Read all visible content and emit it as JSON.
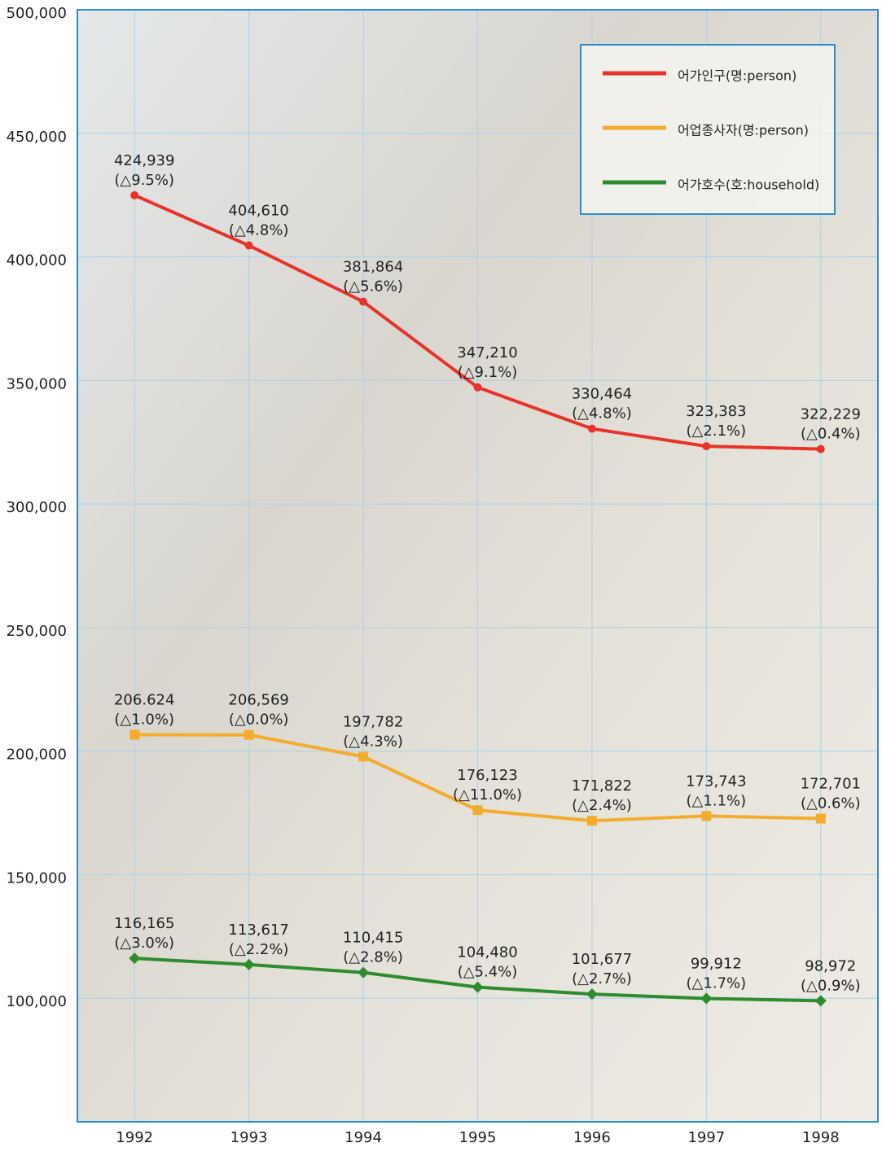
{
  "chart_data": {
    "type": "line",
    "categories": [
      "1992",
      "1993",
      "1994",
      "1995",
      "1996",
      "1997",
      "1998"
    ],
    "ylim": [
      50000,
      500000
    ],
    "yticks": [
      {
        "value": 100000,
        "label": "100,000"
      },
      {
        "value": 150000,
        "label": "150,000"
      },
      {
        "value": 200000,
        "label": "200,000"
      },
      {
        "value": 250000,
        "label": "250,000"
      },
      {
        "value": 300000,
        "label": "300,000"
      },
      {
        "value": 350000,
        "label": "350,000"
      },
      {
        "value": 400000,
        "label": "400,000"
      },
      {
        "value": 450000,
        "label": "450,000"
      },
      {
        "value": 500000,
        "label": "500,000"
      }
    ],
    "grid": true,
    "legend": "upper right",
    "series": [
      {
        "name": "어가인구(명:person)",
        "color": "#e8322a",
        "marker": "circle",
        "values": [
          424939,
          404610,
          381864,
          347210,
          330464,
          323383,
          322229
        ],
        "value_labels": [
          "424,939",
          "404,610",
          "381,864",
          "347,210",
          "330,464",
          "323,383",
          "322,229"
        ],
        "change_labels": [
          "(△9.5%)",
          "(△4.8%)",
          "(△5.6%)",
          "(△9.1%)",
          "(△4.8%)",
          "(△2.1%)",
          "(△0.4%)"
        ]
      },
      {
        "name": "어업종사자(명:person)",
        "color": "#f5ac2c",
        "marker": "square",
        "values": [
          206624,
          206569,
          197782,
          176123,
          171822,
          173743,
          172701
        ],
        "value_labels": [
          "206.624",
          "206,569",
          "197,782",
          "176,123",
          "171,822",
          "173,743",
          "172,701"
        ],
        "change_labels": [
          "(△1.0%)",
          "(△0.0%)",
          "(△4.3%)",
          "(△11.0%)",
          "(△2.4%)",
          "(△1.1%)",
          "(△0.6%)"
        ]
      },
      {
        "name": "어가호수(호:household)",
        "color": "#2e8b2e",
        "marker": "diamond",
        "values": [
          116165,
          113617,
          110415,
          104480,
          101677,
          99912,
          98972
        ],
        "value_labels": [
          "116,165",
          "113,617",
          "110,415",
          "104,480",
          "101,677",
          "99,912",
          "98,972"
        ],
        "change_labels": [
          "(△3.0%)",
          "(△2.2%)",
          "(△2.8%)",
          "(△5.4%)",
          "(△2.7%)",
          "(△1.7%)",
          "(△0.9%)"
        ]
      }
    ]
  }
}
